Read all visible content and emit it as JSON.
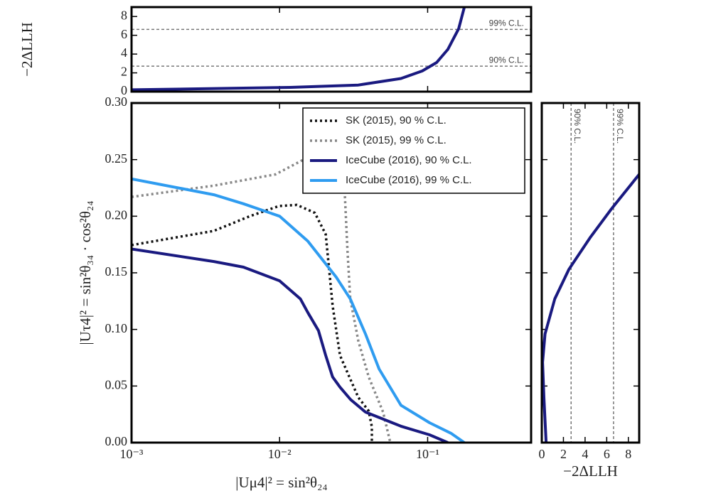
{
  "chart_data": [
    {
      "type": "line",
      "xlabel": "|Uμ4|² = sin²θ₂₄",
      "ylabel": "|Uτ4|² = sin²θ₃₄ · cos²θ₂₄",
      "xlog": true,
      "xlim": [
        0.001,
        0.5
      ],
      "xticks": [
        {
          "value": 0.001,
          "label": "10⁻³"
        },
        {
          "value": 0.01,
          "label": "10⁻²"
        },
        {
          "value": 0.1,
          "label": "10⁻¹"
        }
      ],
      "ylim": [
        0,
        0.3
      ],
      "yticks": [
        {
          "value": 0,
          "label": "0.00"
        },
        {
          "value": 0.05,
          "label": "0.05"
        },
        {
          "value": 0.1,
          "label": "0.10"
        },
        {
          "value": 0.15,
          "label": "0.15"
        },
        {
          "value": 0.2,
          "label": "0.20"
        },
        {
          "value": 0.25,
          "label": "0.25"
        },
        {
          "value": 0.3,
          "label": "0.30"
        }
      ],
      "legend": "upper right",
      "series": [
        {
          "name": "SK (2015), 90 % C.L.",
          "color": "#111111",
          "linestyle": "dotted",
          "x": [
            0.001,
            0.0036,
            0.0063,
            0.0099,
            0.0131,
            0.0173,
            0.0205,
            0.0216,
            0.0228,
            0.0256,
            0.034,
            0.04,
            0.042,
            0.042
          ],
          "values": [
            0.1745,
            0.187,
            0.2,
            0.209,
            0.21,
            0.203,
            0.184,
            0.153,
            0.121,
            0.077,
            0.04,
            0.028,
            0.014,
            0
          ]
        },
        {
          "name": "SK (2015), 99 % C.L.",
          "color": "#888888",
          "linestyle": "dotted",
          "x": [
            0.001,
            0.0036,
            0.0094,
            0.0155,
            0.0216,
            0.0264,
            0.0276,
            0.0287,
            0.03,
            0.034,
            0.04,
            0.05,
            0.056
          ],
          "values": [
            0.217,
            0.227,
            0.237,
            0.252,
            0.256,
            0.247,
            0.219,
            0.171,
            0.127,
            0.09,
            0.058,
            0.027,
            0
          ]
        },
        {
          "name": "IceCube (2016), 90 % C.L.",
          "color": "#1a1a80",
          "linestyle": "solid",
          "x": [
            0.001,
            0.0036,
            0.0057,
            0.01,
            0.0138,
            0.0155,
            0.0183,
            0.0205,
            0.0228,
            0.0256,
            0.0302,
            0.038,
            0.066,
            0.103,
            0.137
          ],
          "values": [
            0.171,
            0.16,
            0.155,
            0.143,
            0.127,
            0.115,
            0.099,
            0.077,
            0.058,
            0.049,
            0.038,
            0.027,
            0.0145,
            0.0069,
            0
          ]
        },
        {
          "name": "IceCube (2016), 99 % C.L.",
          "color": "#2f9cf0",
          "linestyle": "solid",
          "x": [
            0.001,
            0.0036,
            0.0057,
            0.01,
            0.0155,
            0.0242,
            0.03,
            0.038,
            0.047,
            0.066,
            0.103,
            0.144,
            0.177
          ],
          "values": [
            0.233,
            0.219,
            0.211,
            0.2,
            0.178,
            0.146,
            0.127,
            0.096,
            0.065,
            0.033,
            0.0176,
            0.0082,
            0
          ]
        }
      ]
    },
    {
      "type": "line",
      "ylabel": "−2ΔLLH",
      "xlog": true,
      "xlim": [
        0.001,
        0.5
      ],
      "ylim": [
        0,
        9
      ],
      "yticks": [
        0,
        2,
        4,
        6,
        8
      ],
      "hlines": [
        {
          "value": 2.71,
          "label": "90% C.L."
        },
        {
          "value": 6.63,
          "label": "99% C.L."
        }
      ],
      "series": [
        {
          "color": "#1a1a80",
          "linestyle": "solid",
          "x": [
            0.001,
            0.0118,
            0.034,
            0.066,
            0.092,
            0.115,
            0.137,
            0.162,
            0.177
          ],
          "values": [
            0.2,
            0.45,
            0.7,
            1.4,
            2.2,
            3.1,
            4.5,
            6.7,
            9
          ]
        }
      ]
    },
    {
      "type": "line",
      "xlabel": "−2ΔLLH",
      "xlim": [
        0,
        9
      ],
      "xticks": [
        0,
        2,
        4,
        6,
        8
      ],
      "ylim": [
        0,
        0.3
      ],
      "vlines": [
        {
          "value": 2.71,
          "label": "90% C.L."
        },
        {
          "value": 6.63,
          "label": "99% C.L."
        }
      ],
      "series": [
        {
          "color": "#1a1a80",
          "linestyle": "solid",
          "x": [
            0.4,
            0.2,
            0.07,
            0.3,
            1.2,
            2.5,
            4.46,
            6.4,
            9
          ],
          "values": [
            0,
            0.04,
            0.071,
            0.096,
            0.127,
            0.153,
            0.181,
            0.206,
            0.237
          ]
        }
      ]
    }
  ]
}
